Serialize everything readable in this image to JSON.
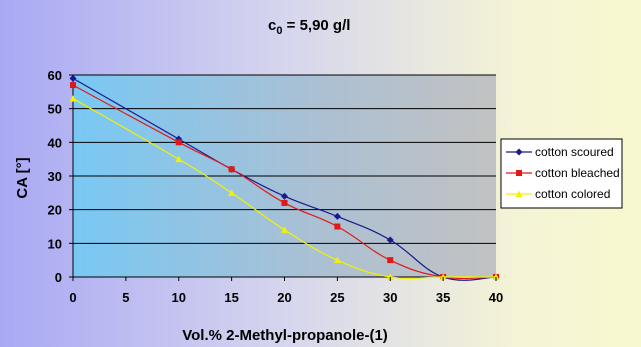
{
  "chart_data": {
    "type": "line",
    "title": "c",
    "title_sub": "0",
    "title_rest": " = 5,90 g/l",
    "xlabel": "Vol.% 2-Methyl-propanole-(1)",
    "ylabel": "CA [°]",
    "xlim": [
      0,
      40
    ],
    "ylim": [
      0,
      60
    ],
    "x_ticks": [
      0,
      5,
      10,
      15,
      20,
      25,
      30,
      35,
      40
    ],
    "y_ticks": [
      0,
      10,
      20,
      30,
      40,
      50,
      60
    ],
    "grid": "horizontal",
    "legend_position": "right",
    "series": [
      {
        "name": "cotton scoured",
        "color": "#1a1a8c",
        "marker": "diamond",
        "x": [
          0,
          10,
          15,
          20,
          25,
          30,
          35,
          40
        ],
        "y": [
          59,
          41,
          32,
          24,
          18,
          11,
          0,
          0
        ]
      },
      {
        "name": "cotton bleached",
        "color": "#e01818",
        "marker": "square",
        "x": [
          0,
          10,
          15,
          20,
          25,
          30,
          35,
          40
        ],
        "y": [
          57,
          40,
          32,
          22,
          15,
          5,
          0,
          0
        ]
      },
      {
        "name": "cotton colored",
        "color": "#f2f200",
        "marker": "triangle",
        "x": [
          0,
          10,
          15,
          20,
          25,
          30,
          35,
          40
        ],
        "y": [
          53,
          35,
          25,
          14,
          5,
          0,
          0,
          0
        ]
      }
    ]
  }
}
